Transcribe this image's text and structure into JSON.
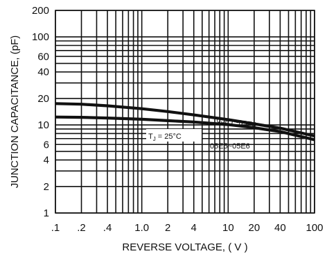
{
  "chart_data": {
    "type": "line",
    "title": "",
    "xlabel": "REVERSE VOLTAGE, ( V )",
    "ylabel": "JUNCTION CAPACITANCE, (pF)",
    "x_scale": "log",
    "y_scale": "log",
    "xlim": [
      0.1,
      100
    ],
    "ylim": [
      1,
      200
    ],
    "grid": true,
    "x_ticks": [
      {
        "value": 0.1,
        "label": ".1"
      },
      {
        "value": 0.2,
        "label": ".2"
      },
      {
        "value": 0.4,
        "label": ".4"
      },
      {
        "value": 1,
        "label": "1.0"
      },
      {
        "value": 2,
        "label": "2"
      },
      {
        "value": 4,
        "label": "4"
      },
      {
        "value": 10,
        "label": "10"
      },
      {
        "value": 20,
        "label": "20"
      },
      {
        "value": 40,
        "label": "40"
      },
      {
        "value": 100,
        "label": "100"
      }
    ],
    "y_ticks": [
      {
        "value": 1,
        "label": "1"
      },
      {
        "value": 2,
        "label": "2"
      },
      {
        "value": 4,
        "label": "4"
      },
      {
        "value": 6,
        "label": "6"
      },
      {
        "value": 10,
        "label": "10"
      },
      {
        "value": 20,
        "label": "20"
      },
      {
        "value": 40,
        "label": "40"
      },
      {
        "value": 60,
        "label": "60"
      },
      {
        "value": 100,
        "label": "100"
      },
      {
        "value": 200,
        "label": "200"
      }
    ],
    "x_grid": [
      0.1,
      0.2,
      0.3,
      0.4,
      0.5,
      0.6,
      0.7,
      0.8,
      0.9,
      1,
      2,
      3,
      4,
      5,
      6,
      7,
      8,
      9,
      10,
      20,
      30,
      40,
      50,
      60,
      70,
      80,
      90,
      100
    ],
    "y_grid": [
      1,
      2,
      3,
      4,
      5,
      6,
      7,
      8,
      9,
      10,
      20,
      30,
      40,
      50,
      60,
      70,
      80,
      90,
      100,
      200
    ],
    "series": [
      {
        "name": "05E1~05E4",
        "x": [
          0.1,
          0.2,
          0.4,
          1,
          2,
          4,
          10,
          20,
          40,
          100
        ],
        "y": [
          17.5,
          17.2,
          16.5,
          15.3,
          14.2,
          13.0,
          11.5,
          10.3,
          9.2,
          7.5
        ]
      },
      {
        "name": "05E5~05E6",
        "x": [
          0.1,
          0.2,
          0.4,
          1,
          2,
          4,
          10,
          20,
          40,
          100
        ],
        "y": [
          12.3,
          12.2,
          12.0,
          11.6,
          11.2,
          10.8,
          10.1,
          9.3,
          8.4,
          6.8
        ]
      }
    ],
    "annotations": [
      {
        "text_main": "T",
        "text_sub": "J",
        "text_rest": " = 25°C",
        "x": 3.2,
        "y": 7.6
      }
    ]
  }
}
